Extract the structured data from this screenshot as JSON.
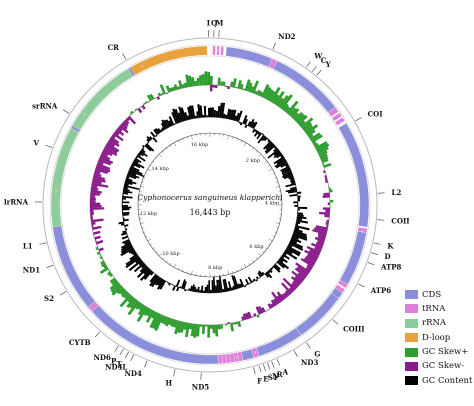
{
  "genome": {
    "species": "Cyphonocerus sanguineus klapperichi",
    "size_label": "16,443 bp",
    "size_bp": 16443
  },
  "genes": [
    {
      "name": "I",
      "type": "tRNA"
    },
    {
      "name": "Q",
      "type": "tRNA"
    },
    {
      "name": "M",
      "type": "tRNA"
    },
    {
      "name": "ND2",
      "type": "CDS"
    },
    {
      "name": "W",
      "type": "tRNA"
    },
    {
      "name": "C",
      "type": "tRNA"
    },
    {
      "name": "Y",
      "type": "tRNA"
    },
    {
      "name": "COI",
      "type": "CDS"
    },
    {
      "name": "L2",
      "type": "tRNA"
    },
    {
      "name": "COII",
      "type": "CDS"
    },
    {
      "name": "K",
      "type": "tRNA"
    },
    {
      "name": "D",
      "type": "tRNA"
    },
    {
      "name": "ATP8",
      "type": "CDS"
    },
    {
      "name": "ATP6",
      "type": "CDS"
    },
    {
      "name": "COIII",
      "type": "CDS"
    },
    {
      "name": "G",
      "type": "tRNA"
    },
    {
      "name": "ND3",
      "type": "CDS"
    },
    {
      "name": "A",
      "type": "tRNA"
    },
    {
      "name": "R",
      "type": "tRNA"
    },
    {
      "name": "N",
      "type": "tRNA"
    },
    {
      "name": "S1",
      "type": "tRNA"
    },
    {
      "name": "E",
      "type": "tRNA"
    },
    {
      "name": "F",
      "type": "tRNA"
    },
    {
      "name": "ND5",
      "type": "CDS"
    },
    {
      "name": "H",
      "type": "tRNA"
    },
    {
      "name": "ND4",
      "type": "CDS"
    },
    {
      "name": "ND4L",
      "type": "CDS"
    },
    {
      "name": "T",
      "type": "tRNA"
    },
    {
      "name": "P",
      "type": "tRNA"
    },
    {
      "name": "ND6",
      "type": "CDS"
    },
    {
      "name": "CYTB",
      "type": "CDS"
    },
    {
      "name": "S2",
      "type": "tRNA"
    },
    {
      "name": "ND1",
      "type": "CDS"
    },
    {
      "name": "L1",
      "type": "tRNA"
    },
    {
      "name": "lrRNA",
      "type": "rRNA"
    },
    {
      "name": "V",
      "type": "tRNA"
    },
    {
      "name": "srRNA",
      "type": "rRNA"
    },
    {
      "name": "CR",
      "type": "D-loop"
    }
  ],
  "scale_ticks": [
    "2 kbp",
    "4 kbp",
    "6 kbp",
    "8 kbp",
    "10 kbp",
    "12 kbp",
    "14 kbp",
    "16 kbp"
  ],
  "legend": [
    {
      "label": "CDS",
      "color": "#8B8FDB"
    },
    {
      "label": "tRNA",
      "color": "#E07FD8"
    },
    {
      "label": "rRNA",
      "color": "#8FCC9B"
    },
    {
      "label": "D-loop",
      "color": "#E8A23C"
    },
    {
      "label": "GC Skew+",
      "color": "#2E9E2E"
    },
    {
      "label": "GC Skew-",
      "color": "#8B1A8B"
    },
    {
      "label": "GC Content",
      "color": "#000000"
    }
  ]
}
